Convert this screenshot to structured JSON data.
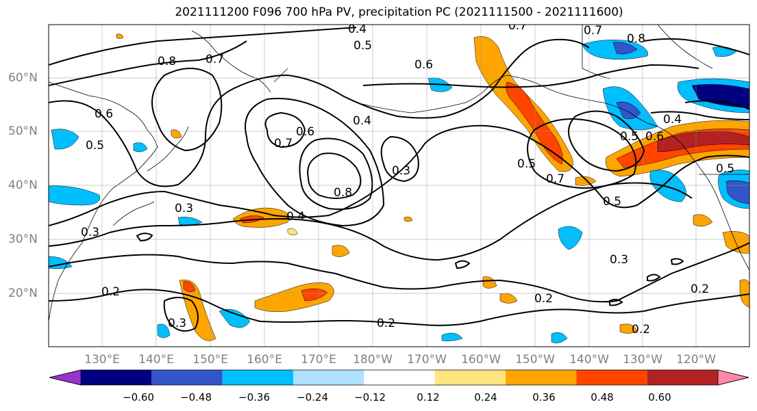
{
  "title": "2021111200 F096 700 hPa PV, precipitation PC (2021111500 - 2021111600)",
  "lat_labels": [
    "60°N",
    "50°N",
    "40°N",
    "30°N",
    "20°N"
  ],
  "lon_labels": [
    "130°E",
    "140°E",
    "150°E",
    "160°E",
    "170°E",
    "180°W",
    "170°W",
    "160°W",
    "150°W",
    "140°W",
    "130°W",
    "120°W"
  ],
  "colorbar": {
    "ticks": [
      "−0.60",
      "−0.48",
      "−0.36",
      "−0.24",
      "−0.12",
      "0.12",
      "0.24",
      "0.36",
      "0.48",
      "0.60"
    ],
    "colors": [
      "#9933cc",
      "#000080",
      "#3355cc",
      "#00bfff",
      "#b0e0ff",
      "#ffffff",
      "#ffe680",
      "#ffa500",
      "#ff4500",
      "#b22222",
      "#ff88aa"
    ]
  },
  "contour_labels": [
    {
      "text": "0.8",
      "id": "c1"
    },
    {
      "text": "0.7",
      "id": "c2"
    },
    {
      "text": "0.6",
      "id": "c3"
    },
    {
      "text": "0.5",
      "id": "c4"
    },
    {
      "text": "0.4",
      "id": "c5"
    },
    {
      "text": "0.3",
      "id": "c6"
    },
    {
      "text": "0.2",
      "id": "c7"
    },
    {
      "text": "0.7",
      "id": "c8"
    },
    {
      "text": "0.6",
      "id": "c9"
    },
    {
      "text": "0.7",
      "id": "c10"
    },
    {
      "text": "0.8",
      "id": "c11"
    },
    {
      "text": "0.5",
      "id": "c12"
    },
    {
      "text": "0.3",
      "id": "c13"
    },
    {
      "text": "0.4",
      "id": "c14"
    },
    {
      "text": "0.5",
      "id": "c15"
    },
    {
      "text": "0.7",
      "id": "c16"
    },
    {
      "text": "0.5",
      "id": "c17"
    },
    {
      "text": "0.3",
      "id": "c18"
    },
    {
      "text": "0.2",
      "id": "c19"
    },
    {
      "text": "0.2",
      "id": "c20"
    },
    {
      "text": "0.3",
      "id": "c21"
    },
    {
      "text": "0.2",
      "id": "c22"
    },
    {
      "text": "0.4",
      "id": "c23"
    },
    {
      "text": "0.6",
      "id": "c24"
    },
    {
      "text": "0.7",
      "id": "c25"
    },
    {
      "text": "0.8",
      "id": "c26"
    },
    {
      "text": "0.6",
      "id": "c27"
    },
    {
      "text": "0.4",
      "id": "c28"
    },
    {
      "text": "0.5",
      "id": "c29"
    },
    {
      "text": "0.2",
      "id": "c30"
    },
    {
      "text": "0.5",
      "id": "c31"
    },
    {
      "text": "0.3",
      "id": "c32"
    }
  ]
}
